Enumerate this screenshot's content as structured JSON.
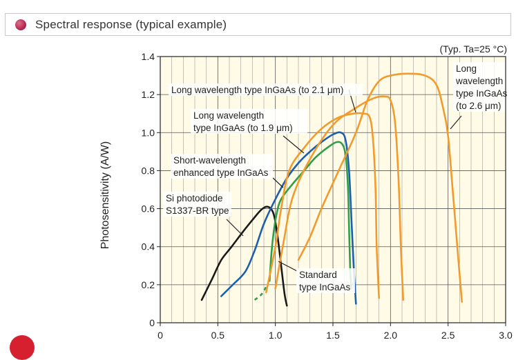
{
  "header": {
    "title": "Spectral response (typical example)",
    "accent_color": "#b8284f",
    "icon": "bullet-dot-icon"
  },
  "chart_data": {
    "type": "line",
    "title": "",
    "condition_note": "(Typ. Ta=25 °C)",
    "xlabel": "",
    "ylabel": "Photosensitivity (A/W)",
    "xlim": [
      0,
      3.0
    ],
    "ylim": [
      0,
      1.4
    ],
    "x_ticks": [
      "0",
      "0.5",
      "1.0",
      "1.5",
      "2.0",
      "2.5",
      "3.0"
    ],
    "y_ticks": [
      "0",
      "0.2",
      "0.4",
      "0.6",
      "0.8",
      "1.0",
      "1.2",
      "1.4"
    ],
    "grid": true,
    "background_color": "#fffbe6",
    "series": [
      {
        "key": "si",
        "color": "#1a1a1a",
        "label_lines": [
          "Si photodiode",
          "S1337-BR type"
        ],
        "points": [
          [
            0.36,
            0.12
          ],
          [
            0.45,
            0.23
          ],
          [
            0.53,
            0.33
          ],
          [
            0.62,
            0.4
          ],
          [
            0.72,
            0.48
          ],
          [
            0.8,
            0.54
          ],
          [
            0.87,
            0.59
          ],
          [
            0.92,
            0.61
          ],
          [
            0.96,
            0.6
          ],
          [
            0.99,
            0.56
          ],
          [
            1.02,
            0.45
          ],
          [
            1.05,
            0.3
          ],
          [
            1.08,
            0.15
          ],
          [
            1.1,
            0.09
          ]
        ]
      },
      {
        "key": "short",
        "color": "#1b5fad",
        "label_lines": [
          "Short-wavelength",
          "enhanced type InGaAs"
        ],
        "points": [
          [
            0.53,
            0.14
          ],
          [
            0.63,
            0.2
          ],
          [
            0.74,
            0.27
          ],
          [
            0.82,
            0.38
          ],
          [
            0.9,
            0.52
          ],
          [
            1.0,
            0.65
          ],
          [
            1.1,
            0.76
          ],
          [
            1.2,
            0.84
          ],
          [
            1.3,
            0.9
          ],
          [
            1.4,
            0.95
          ],
          [
            1.5,
            0.99
          ],
          [
            1.57,
            1.0
          ],
          [
            1.61,
            0.96
          ],
          [
            1.64,
            0.8
          ],
          [
            1.66,
            0.55
          ],
          [
            1.68,
            0.3
          ],
          [
            1.7,
            0.1
          ]
        ]
      },
      {
        "key": "standard",
        "color": "#2e9e48",
        "label_lines": [
          "Standard",
          "type InGaAs"
        ],
        "points": [
          [
            0.95,
            0.22
          ],
          [
            0.96,
            0.32
          ],
          [
            0.98,
            0.45
          ],
          [
            1.01,
            0.57
          ],
          [
            1.05,
            0.65
          ],
          [
            1.15,
            0.73
          ],
          [
            1.25,
            0.8
          ],
          [
            1.35,
            0.87
          ],
          [
            1.45,
            0.92
          ],
          [
            1.53,
            0.95
          ],
          [
            1.58,
            0.94
          ],
          [
            1.61,
            0.88
          ],
          [
            1.63,
            0.72
          ],
          [
            1.64,
            0.5
          ],
          [
            1.65,
            0.28
          ],
          [
            1.66,
            0.18
          ]
        ],
        "dashed_start": [
          [
            0.82,
            0.12
          ],
          [
            0.88,
            0.15
          ],
          [
            0.93,
            0.2
          ]
        ]
      },
      {
        "key": "lw19",
        "color": "#f39a2c",
        "label_lines": [
          "Long wavelength",
          "type InGaAs (to 1.9 μm)"
        ],
        "points": [
          [
            0.92,
            0.16
          ],
          [
            1.0,
            0.4
          ],
          [
            1.05,
            0.6
          ],
          [
            1.12,
            0.8
          ],
          [
            1.25,
            0.92
          ],
          [
            1.4,
            1.02
          ],
          [
            1.55,
            1.08
          ],
          [
            1.68,
            1.1
          ],
          [
            1.76,
            1.1
          ],
          [
            1.82,
            1.08
          ],
          [
            1.85,
            0.95
          ],
          [
            1.87,
            0.7
          ],
          [
            1.88,
            0.4
          ],
          [
            1.9,
            0.13
          ]
        ]
      },
      {
        "key": "lw21",
        "color": "#f39a2c",
        "label_lines": [
          "Long wavelength type InGaAs (to 2.1 μm)"
        ],
        "points": [
          [
            1.0,
            0.18
          ],
          [
            1.07,
            0.42
          ],
          [
            1.15,
            0.66
          ],
          [
            1.3,
            0.86
          ],
          [
            1.5,
            1.04
          ],
          [
            1.7,
            1.13
          ],
          [
            1.85,
            1.18
          ],
          [
            1.95,
            1.19
          ],
          [
            2.0,
            1.17
          ],
          [
            2.04,
            1.05
          ],
          [
            2.07,
            0.75
          ],
          [
            2.09,
            0.4
          ],
          [
            2.11,
            0.12
          ]
        ]
      },
      {
        "key": "lw26",
        "color": "#f39a2c",
        "label_lines": [
          "Long",
          "wavelength",
          "type InGaAs",
          "(to 2.6 μm)"
        ],
        "points": [
          [
            1.2,
            0.33
          ],
          [
            1.3,
            0.45
          ],
          [
            1.4,
            0.6
          ],
          [
            1.55,
            0.8
          ],
          [
            1.7,
            1.0
          ],
          [
            1.8,
            1.17
          ],
          [
            1.9,
            1.27
          ],
          [
            2.0,
            1.3
          ],
          [
            2.15,
            1.31
          ],
          [
            2.3,
            1.3
          ],
          [
            2.4,
            1.25
          ],
          [
            2.46,
            1.12
          ],
          [
            2.5,
            0.98
          ],
          [
            2.54,
            0.7
          ],
          [
            2.58,
            0.4
          ],
          [
            2.62,
            0.11
          ]
        ]
      }
    ]
  }
}
